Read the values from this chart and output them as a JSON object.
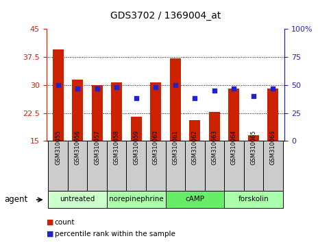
{
  "title": "GDS3702 / 1369004_at",
  "samples": [
    "GSM310055",
    "GSM310056",
    "GSM310057",
    "GSM310058",
    "GSM310059",
    "GSM310060",
    "GSM310061",
    "GSM310062",
    "GSM310063",
    "GSM310064",
    "GSM310065",
    "GSM310066"
  ],
  "bar_values": [
    39.5,
    31.5,
    30.0,
    30.8,
    21.5,
    30.8,
    37.2,
    20.5,
    22.8,
    29.0,
    16.5,
    29.0
  ],
  "dot_values": [
    50,
    47,
    47,
    48,
    38,
    48,
    50,
    38,
    45,
    47,
    40,
    47
  ],
  "ymin": 15,
  "ymax": 45,
  "yticks": [
    15,
    22.5,
    30,
    37.5,
    45
  ],
  "ytick_labels": [
    "15",
    "22.5",
    "30",
    "37.5",
    "45"
  ],
  "y2min": 0,
  "y2max": 100,
  "y2ticks": [
    0,
    25,
    50,
    75,
    100
  ],
  "y2tick_labels": [
    "0",
    "25",
    "50",
    "75",
    "100%"
  ],
  "bar_color": "#cc2200",
  "dot_color": "#2222cc",
  "grid_lines": [
    22.5,
    30.0,
    37.5
  ],
  "agent_groups": [
    {
      "label": "untreated",
      "start": 0,
      "end": 3,
      "color": "#ccffcc"
    },
    {
      "label": "norepinephrine",
      "start": 3,
      "end": 6,
      "color": "#aaffaa"
    },
    {
      "label": "cAMP",
      "start": 6,
      "end": 9,
      "color": "#66ee66"
    },
    {
      "label": "forskolin",
      "start": 9,
      "end": 12,
      "color": "#aaffaa"
    }
  ],
  "agent_label": "agent",
  "legend_count": "count",
  "legend_percentile": "percentile rank within the sample",
  "label_box_color": "#cccccc",
  "bar_width": 0.55,
  "tick_color_left": "#cc2200",
  "tick_color_right": "#2222cc"
}
